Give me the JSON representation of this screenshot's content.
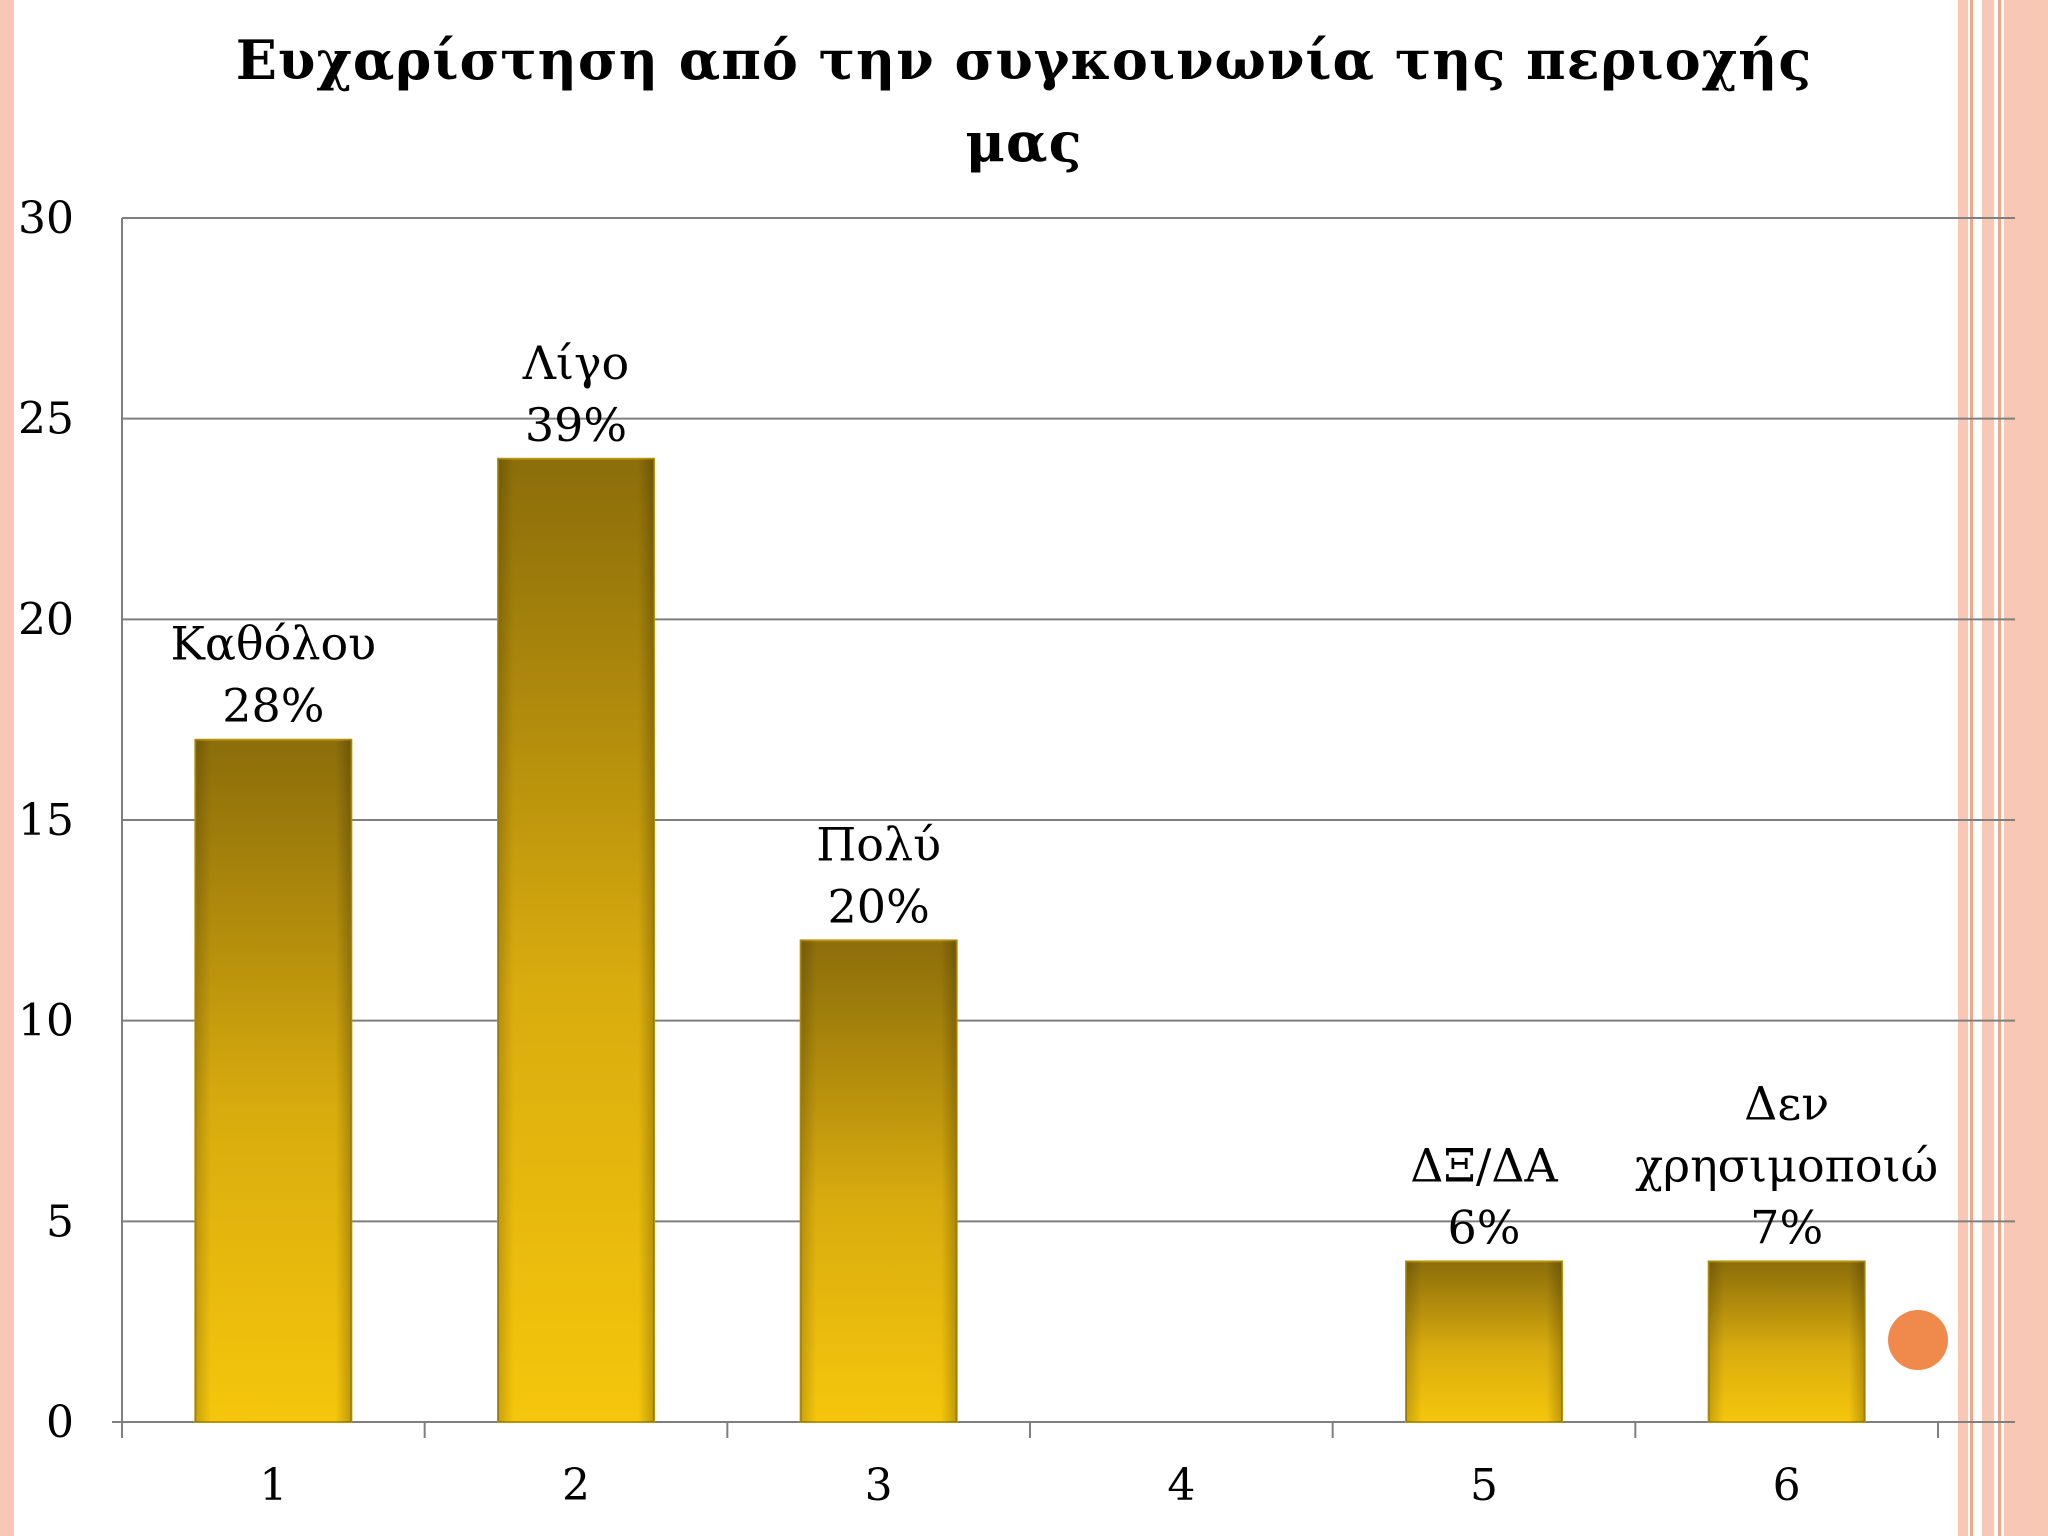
{
  "theme": {
    "border_light": "#f8c8b4",
    "border_dark": "#f0a88c",
    "accent_orange": "#f08a4c",
    "bar_light": "#f5c60c",
    "bar_dark": "#8b6d0a",
    "grid_color": "#7f7f7f"
  },
  "chart_data": {
    "type": "bar",
    "title_lines": [
      "Ευχαρίστηση από την συγκοινωνία της περιοχής",
      "μας"
    ],
    "categories": [
      "1",
      "2",
      "3",
      "4",
      "5",
      "6"
    ],
    "values": [
      17,
      24,
      12,
      0,
      4,
      4
    ],
    "data_labels": [
      [
        "Καθόλου",
        "28%"
      ],
      [
        "Λίγο",
        "39%"
      ],
      [
        "Πολύ",
        "20%"
      ],
      [],
      [
        "ΔΞ/ΔΑ",
        "6%"
      ],
      [
        "Δεν",
        "χρησιμοποιώ",
        "7%"
      ]
    ],
    "ylim": [
      0,
      30
    ],
    "yticks": [
      0,
      5,
      10,
      15,
      20,
      25,
      30
    ],
    "grid": true,
    "legend": "none",
    "xlabel": "",
    "ylabel": ""
  }
}
